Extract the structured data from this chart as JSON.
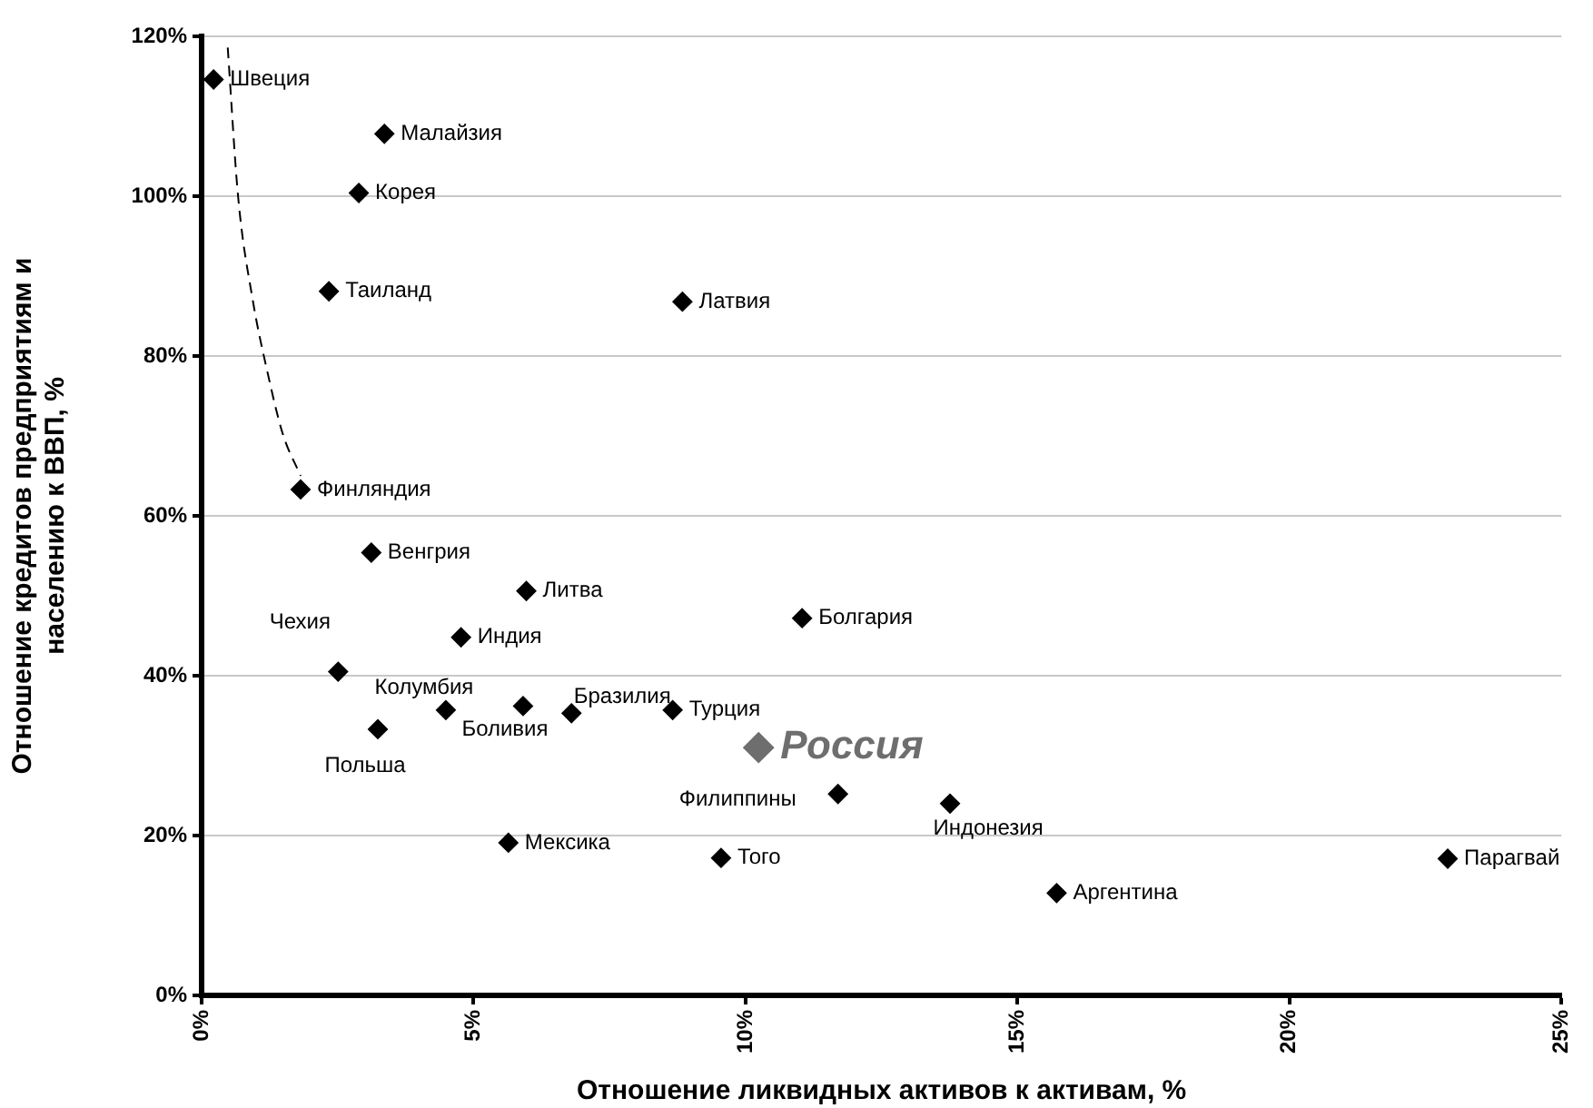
{
  "chart_data": {
    "type": "scatter",
    "xlabel": "Отношение ликвидных активов к активам, %",
    "ylabel": "Отношение кредитов предприятиям и\nнаселению к ВВП, %",
    "xlim": [
      0,
      25
    ],
    "xticks": [
      {
        "value": 0,
        "label": "0%"
      },
      {
        "value": 5,
        "label": "5%"
      },
      {
        "value": 10,
        "label": "10%"
      },
      {
        "value": 15,
        "label": "15%"
      },
      {
        "value": 20,
        "label": "20%"
      },
      {
        "value": 25,
        "label": "25%"
      }
    ],
    "ylim": [
      0,
      120
    ],
    "yticks": [
      {
        "value": 0,
        "label": "0%"
      },
      {
        "value": 20,
        "label": "20%"
      },
      {
        "value": 40,
        "label": "40%"
      },
      {
        "value": 60,
        "label": "60%"
      },
      {
        "value": 80,
        "label": "80%"
      },
      {
        "value": 100,
        "label": "100%"
      },
      {
        "value": 120,
        "label": "120%"
      }
    ],
    "grid": "y",
    "legend": false,
    "marker": "diamond",
    "series": [
      {
        "name": "Швеция",
        "color": "#000000",
        "x": [
          0.22
        ],
        "values": [
          114.6
        ]
      },
      {
        "name": "Малайзия",
        "color": "#000000",
        "x": [
          3.36
        ],
        "values": [
          107.8
        ]
      },
      {
        "name": "Корея",
        "color": "#000000",
        "x": [
          2.89
        ],
        "values": [
          100.4
        ]
      },
      {
        "name": "Таиланд",
        "color": "#000000",
        "x": [
          2.34
        ],
        "values": [
          88.1
        ]
      },
      {
        "name": "Латвия",
        "color": "#000000",
        "x": [
          8.84
        ],
        "values": [
          86.8
        ]
      },
      {
        "name": "Финляндия",
        "color": "#000000",
        "x": [
          1.82
        ],
        "values": [
          63.3
        ]
      },
      {
        "name": "Венгрия",
        "color": "#000000",
        "x": [
          3.12
        ],
        "values": [
          55.4
        ]
      },
      {
        "name": "Литва",
        "color": "#000000",
        "x": [
          5.97
        ],
        "values": [
          50.6
        ]
      },
      {
        "name": "Болгария",
        "color": "#000000",
        "x": [
          11.04
        ],
        "values": [
          47.2
        ]
      },
      {
        "name": "Индия",
        "color": "#000000",
        "x": [
          4.77
        ],
        "values": [
          44.8
        ]
      },
      {
        "name": "Чехия",
        "color": "#000000",
        "x": [
          2.51
        ],
        "values": [
          40.5
        ]
      },
      {
        "name": "Колумбия",
        "color": "#000000",
        "x": [
          4.49
        ],
        "values": [
          35.7
        ]
      },
      {
        "name": "Боливия",
        "color": "#000000",
        "x": [
          5.91
        ],
        "values": [
          36.2
        ]
      },
      {
        "name": "Бразилия",
        "color": "#000000",
        "x": [
          6.8
        ],
        "values": [
          35.3
        ]
      },
      {
        "name": "Турция",
        "color": "#000000",
        "x": [
          8.66
        ],
        "values": [
          35.7
        ]
      },
      {
        "name": "Польша",
        "color": "#000000",
        "x": [
          3.24
        ],
        "values": [
          33.3
        ]
      },
      {
        "name": "Россия",
        "color": "#6e6e6e",
        "x": [
          10.24
        ],
        "values": [
          31.0
        ]
      },
      {
        "name": "Филиппины",
        "color": "#000000",
        "x": [
          11.7
        ],
        "values": [
          25.2
        ]
      },
      {
        "name": "Мексика",
        "color": "#000000",
        "x": [
          5.64
        ],
        "values": [
          19.1
        ]
      },
      {
        "name": "Того",
        "color": "#000000",
        "x": [
          9.55
        ],
        "values": [
          17.2
        ]
      },
      {
        "name": "Индонезия",
        "color": "#000000",
        "x": [
          13.76
        ],
        "values": [
          24.0
        ]
      },
      {
        "name": "Аргентина",
        "color": "#000000",
        "x": [
          15.72
        ],
        "values": [
          12.8
        ]
      },
      {
        "name": "Парагвай",
        "color": "#000000",
        "x": [
          22.91
        ],
        "values": [
          17.1
        ]
      },
      {
        "type": "line",
        "color": "#000000",
        "line_style": "dashed",
        "marker": "none",
        "x": [
          0.48,
          0.67,
          0.94,
          1.21,
          1.49,
          1.82
        ],
        "values": [
          118.6,
          100,
          87,
          78,
          70.3,
          65
        ]
      }
    ]
  }
}
